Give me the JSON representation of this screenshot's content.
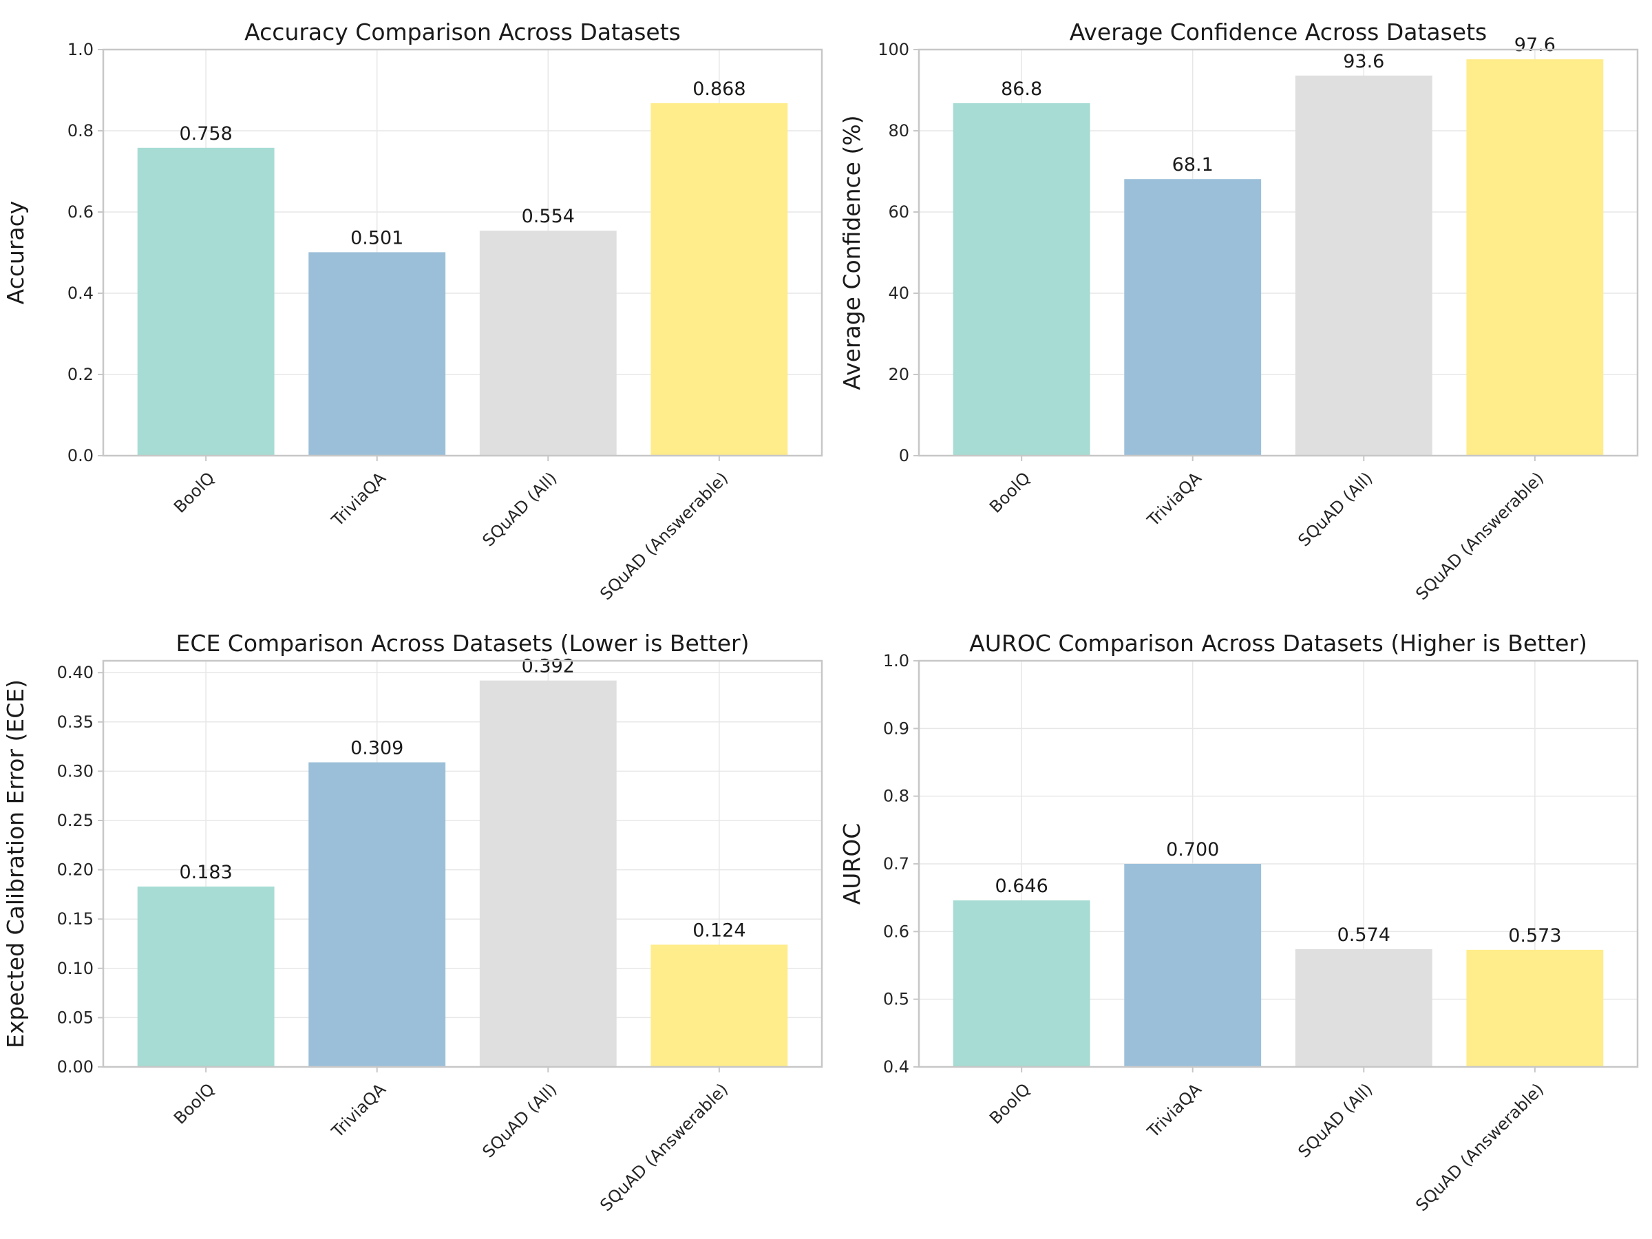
{
  "chart_data": [
    {
      "type": "bar",
      "title": "Accuracy Comparison Across Datasets",
      "xlabel": "",
      "ylabel": "Accuracy",
      "categories": [
        "BoolQ",
        "TriviaQA",
        "SQuAD (All)",
        "SQuAD (Answerable)"
      ],
      "values": [
        0.758,
        0.501,
        0.554,
        0.868
      ],
      "value_labels": [
        "0.758",
        "0.501",
        "0.554",
        "0.868"
      ],
      "ylim": [
        0,
        1.0
      ],
      "yticks": [
        0,
        0.2,
        0.4,
        0.6,
        0.8,
        1.0
      ],
      "ytick_labels": [
        "0.0",
        "0.2",
        "0.4",
        "0.6",
        "0.8",
        "1.0"
      ],
      "grid": true
    },
    {
      "type": "bar",
      "title": "Average Confidence Across Datasets",
      "xlabel": "",
      "ylabel": "Average Confidence (%)",
      "categories": [
        "BoolQ",
        "TriviaQA",
        "SQuAD (All)",
        "SQuAD (Answerable)"
      ],
      "values": [
        86.8,
        68.1,
        93.6,
        97.6
      ],
      "value_labels": [
        "86.8",
        "68.1",
        "93.6",
        "97.6"
      ],
      "ylim": [
        0,
        100
      ],
      "yticks": [
        0,
        20,
        40,
        60,
        80,
        100
      ],
      "ytick_labels": [
        "0",
        "20",
        "40",
        "60",
        "80",
        "100"
      ],
      "grid": true
    },
    {
      "type": "bar",
      "title": "ECE Comparison Across Datasets (Lower is Better)",
      "xlabel": "",
      "ylabel": "Expected Calibration Error (ECE)",
      "categories": [
        "BoolQ",
        "TriviaQA",
        "SQuAD (All)",
        "SQuAD (Answerable)"
      ],
      "values": [
        0.183,
        0.309,
        0.392,
        0.124
      ],
      "value_labels": [
        "0.183",
        "0.309",
        "0.392",
        "0.124"
      ],
      "ylim": [
        0,
        0.412
      ],
      "yticks": [
        0,
        0.05,
        0.1,
        0.15,
        0.2,
        0.25,
        0.3,
        0.35,
        0.4
      ],
      "ytick_labels": [
        "0.00",
        "0.05",
        "0.10",
        "0.15",
        "0.20",
        "0.25",
        "0.30",
        "0.35",
        "0.40"
      ],
      "grid": true
    },
    {
      "type": "bar",
      "title": "AUROC Comparison Across Datasets (Higher is Better)",
      "xlabel": "",
      "ylabel": "AUROC",
      "categories": [
        "BoolQ",
        "TriviaQA",
        "SQuAD (All)",
        "SQuAD (Answerable)"
      ],
      "values": [
        0.646,
        0.7,
        0.574,
        0.573
      ],
      "value_labels": [
        "0.646",
        "0.700",
        "0.574",
        "0.573"
      ],
      "ylim": [
        0.4,
        1.0
      ],
      "yticks": [
        0.4,
        0.5,
        0.6,
        0.7,
        0.8,
        0.9,
        1.0
      ],
      "ytick_labels": [
        "0.4",
        "0.5",
        "0.6",
        "0.7",
        "0.8",
        "0.9",
        "1.0"
      ],
      "grid": true
    }
  ],
  "colors": [
    "#a6dcd3",
    "#9bbfd9",
    "#dfdfdf",
    "#ffec8a"
  ]
}
